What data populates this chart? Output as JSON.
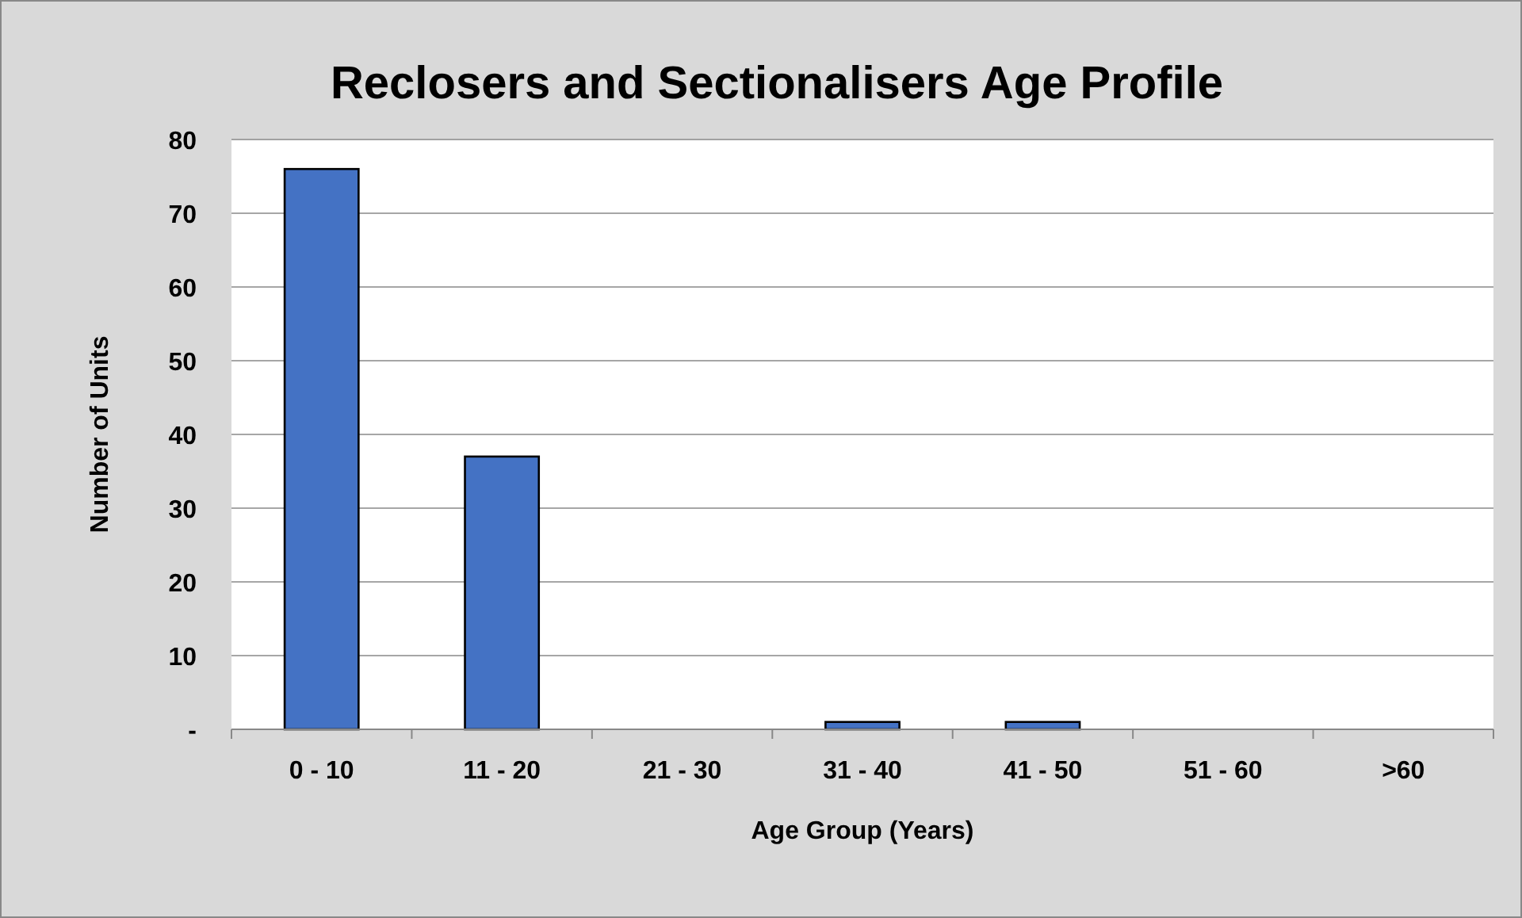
{
  "chart_data": {
    "type": "bar",
    "title": "Reclosers and Sectionalisers Age Profile",
    "xlabel": "Age Group (Years)",
    "ylabel": "Number of Units",
    "categories": [
      "0 - 10",
      "11 - 20",
      "21 - 30",
      "31 - 40",
      "41 - 50",
      "51 - 60",
      ">60"
    ],
    "values": [
      76,
      37,
      0,
      1,
      1,
      0,
      0
    ],
    "color": "#4472c4",
    "ylim": [
      0,
      80
    ],
    "yticks": [
      {
        "value": 0,
        "label": "-"
      },
      10,
      20,
      30,
      40,
      50,
      60,
      70,
      80
    ],
    "grid": "y"
  }
}
